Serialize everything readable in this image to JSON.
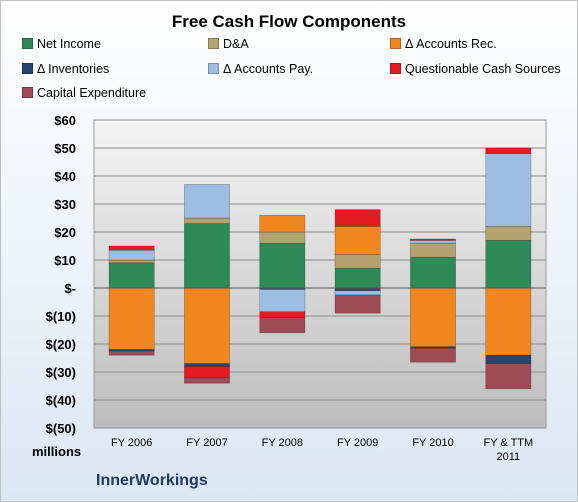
{
  "chart_data": {
    "type": "bar",
    "stacked": true,
    "title": "Free Cash Flow Components",
    "ylabel": "millions",
    "ylim": [
      -50,
      60
    ],
    "yticks": [
      "$60",
      "$50",
      "$40",
      "$30",
      "$20",
      "$10",
      "$-",
      "$(10)",
      "$(20)",
      "$(30)",
      "$(40)",
      "$(50)"
    ],
    "categories": [
      "FY 2006",
      "FY 2007",
      "FY 2008",
      "FY 2009",
      "FY 2010",
      "FY & TTM 2011"
    ],
    "grid": true,
    "legend_position": "top",
    "series": [
      {
        "name": "Net Income",
        "color": "#2e8b57",
        "values": [
          9,
          23,
          16,
          7,
          11,
          17
        ]
      },
      {
        "name": "D&A",
        "color": "#b4a26f",
        "values": [
          1,
          2,
          4,
          5,
          5,
          5
        ]
      },
      {
        "name": "Δ Accounts Rec.",
        "color": "#f0861e",
        "values": [
          -22,
          -27,
          6,
          10,
          -21,
          -24
        ]
      },
      {
        "name": "Δ Inventories",
        "color": "#24466e",
        "values": [
          -0.5,
          -1,
          -0.5,
          -1,
          -0.5,
          -3
        ]
      },
      {
        "name": "Δ Accounts Pay.",
        "color": "#9dbde3",
        "values": [
          3.5,
          12,
          -8,
          -1.5,
          1,
          26
        ]
      },
      {
        "name": "Questionable Cash Sources",
        "color": "#e31b23",
        "values": [
          1.5,
          -4,
          -2,
          6,
          0.5,
          2
        ]
      },
      {
        "name": "Capital Expenditure",
        "color": "#9e4b55",
        "values": [
          -1.5,
          -2,
          -5.5,
          -6.5,
          -5,
          -9
        ]
      }
    ]
  },
  "company": "InnerWorkings",
  "units_label": "millions"
}
